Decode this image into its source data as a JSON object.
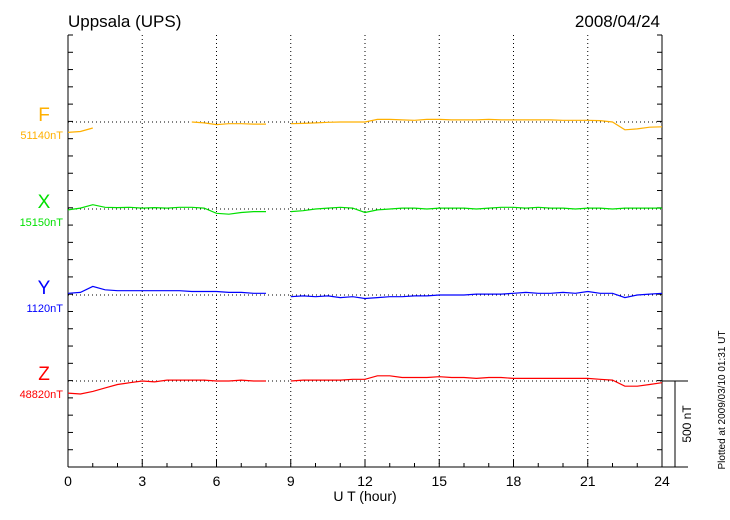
{
  "chart_data": {
    "type": "line",
    "title": "Uppsala (UPS)",
    "date": "2008/04/24",
    "xlabel": "U T (hour)",
    "xlim": [
      0,
      24
    ],
    "xticks": [
      "0",
      "3",
      "6",
      "9",
      "12",
      "15",
      "18",
      "21",
      "24"
    ],
    "scale_bar_label": "500 nT",
    "scale_bar_nT": 500,
    "footnote": "Plotted at 2009/03/10 01:31 UT",
    "grid": true,
    "x": [
      0,
      0.5,
      1,
      1.5,
      2,
      2.5,
      3,
      3.5,
      4,
      4.5,
      5,
      5.5,
      6,
      6.5,
      7,
      7.5,
      8,
      8.5,
      9,
      9.5,
      10,
      10.5,
      11,
      11.5,
      12,
      12.5,
      13,
      13.5,
      14,
      14.5,
      15,
      15.5,
      16,
      16.5,
      17,
      17.5,
      18,
      18.5,
      19,
      19.5,
      20,
      20.5,
      21,
      21.5,
      22,
      22.5,
      23,
      23.5,
      24
    ],
    "series": [
      {
        "name": "F",
        "baseline_label": "51140nT",
        "color": "#ffb000",
        "values": [
          -60,
          -55,
          -35,
          null,
          null,
          null,
          null,
          null,
          null,
          null,
          0,
          -5,
          -15,
          -10,
          -10,
          -12,
          -12,
          null,
          -10,
          -8,
          -5,
          -2,
          0,
          0,
          0,
          15,
          15,
          12,
          10,
          15,
          15,
          12,
          12,
          12,
          15,
          12,
          12,
          12,
          12,
          12,
          10,
          10,
          10,
          8,
          0,
          -45,
          -40,
          -30,
          -28
        ]
      },
      {
        "name": "X",
        "baseline_label": "15150nT",
        "color": "#00e000",
        "values": [
          -5,
          5,
          25,
          10,
          8,
          10,
          5,
          8,
          5,
          10,
          10,
          5,
          -25,
          -30,
          -20,
          -15,
          -15,
          null,
          -15,
          -10,
          0,
          5,
          10,
          5,
          -20,
          -5,
          0,
          5,
          5,
          0,
          5,
          5,
          5,
          0,
          5,
          10,
          10,
          5,
          10,
          5,
          5,
          0,
          5,
          5,
          0,
          5,
          5,
          5,
          5
        ]
      },
      {
        "name": "Y",
        "baseline_label": "1120nT",
        "color": "#0000ff",
        "values": [
          10,
          15,
          50,
          30,
          25,
          25,
          25,
          25,
          25,
          25,
          20,
          20,
          20,
          15,
          15,
          10,
          10,
          null,
          -10,
          -5,
          -10,
          -5,
          -15,
          -10,
          -20,
          -15,
          -10,
          -10,
          -5,
          -5,
          0,
          0,
          0,
          5,
          5,
          5,
          10,
          15,
          10,
          10,
          15,
          10,
          20,
          10,
          10,
          -15,
          0,
          5,
          10
        ]
      },
      {
        "name": "Z",
        "baseline_label": "48820nT",
        "color": "#ff0000",
        "values": [
          -70,
          -75,
          -60,
          -40,
          -20,
          -10,
          0,
          -5,
          5,
          5,
          5,
          5,
          0,
          0,
          5,
          0,
          0,
          null,
          0,
          5,
          5,
          5,
          5,
          10,
          10,
          30,
          30,
          20,
          20,
          20,
          25,
          20,
          20,
          15,
          20,
          20,
          15,
          15,
          15,
          15,
          15,
          15,
          15,
          10,
          5,
          -30,
          -30,
          -20,
          -10
        ]
      }
    ]
  }
}
